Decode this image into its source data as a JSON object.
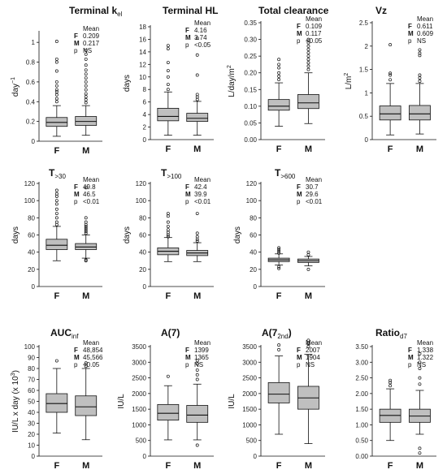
{
  "box_fill": "#bfbfbf",
  "stroke_color": "#111111",
  "chart_data": [
    {
      "type": "boxplot",
      "title": "Terminal k",
      "title_sub": "el",
      "ylabel": "day",
      "ylabel_sup": "−1",
      "ylim": [
        0,
        1.1
      ],
      "yticks": [
        0,
        0.2,
        0.4,
        0.6,
        0.8,
        1
      ],
      "ytick_labels": [
        "0",
        "0.2",
        "0.4",
        "0.6",
        "0.8",
        "1"
      ],
      "categories": [
        "F",
        "M"
      ],
      "stats": {
        "header": "Mean",
        "rows": [
          {
            "label": "F",
            "value": "0.209"
          },
          {
            "label": "M",
            "value": "0.217"
          },
          {
            "label": "p",
            "value": "NS"
          }
        ]
      },
      "boxes": [
        {
          "whisker_low": 0.05,
          "q1": 0.15,
          "median": 0.19,
          "q3": 0.24,
          "whisker_high": 0.36,
          "outliers": [
            0.4,
            0.43,
            0.47,
            0.5,
            0.52,
            0.56,
            0.6,
            0.71,
            0.8,
            0.83,
            1.01
          ]
        },
        {
          "whisker_low": 0.06,
          "q1": 0.16,
          "median": 0.2,
          "q3": 0.25,
          "whisker_high": 0.36,
          "outliers": [
            0.39,
            0.42,
            0.45,
            0.48,
            0.52,
            0.56,
            0.6,
            0.64,
            0.68,
            0.72,
            0.77,
            0.83,
            0.88,
            0.92
          ]
        }
      ]
    },
    {
      "type": "boxplot",
      "title": "Terminal HL",
      "title_sub": "",
      "ylabel": "days",
      "ylabel_sup": "",
      "ylim": [
        0,
        18
      ],
      "yticks": [
        0,
        2,
        4,
        6,
        8,
        10,
        12,
        14,
        16,
        18
      ],
      "ytick_labels": [
        "0",
        "2",
        "4",
        "6",
        "8",
        "10",
        "12",
        "14",
        "16",
        "18"
      ],
      "categories": [
        "F",
        "M"
      ],
      "stats": {
        "header": "Mean",
        "rows": [
          {
            "label": "F",
            "value": "4.16"
          },
          {
            "label": "M",
            "value": "3.74"
          },
          {
            "label": "p",
            "value": "<0.05"
          }
        ]
      },
      "boxes": [
        {
          "whisker_low": 0.7,
          "q1": 3.0,
          "median": 3.7,
          "q3": 5.0,
          "whisker_high": 7.6,
          "outliers": [
            8.0,
            8.8,
            10.0,
            11.0,
            12.3,
            14.5,
            15.0
          ]
        },
        {
          "whisker_low": 0.7,
          "q1": 2.9,
          "median": 3.4,
          "q3": 4.2,
          "whisker_high": 6.1,
          "outliers": [
            6.4,
            6.8,
            7.2,
            10.3,
            13.5,
            16.2
          ]
        }
      ]
    },
    {
      "type": "boxplot",
      "title": "Total clearance",
      "title_sub": "",
      "ylabel": "L/day/m",
      "ylabel_sup": "2",
      "ylim": [
        0,
        0.35
      ],
      "yticks": [
        0,
        0.05,
        0.1,
        0.15,
        0.2,
        0.25,
        0.3,
        0.35
      ],
      "ytick_labels": [
        "0.00",
        "0.05",
        "0.10",
        "0.15",
        "0.20",
        "0.25",
        "0.30",
        "0.35"
      ],
      "categories": [
        "F",
        "M"
      ],
      "stats": {
        "header": "Mean",
        "rows": [
          {
            "label": "F",
            "value": "0.109"
          },
          {
            "label": "M",
            "value": "0.117"
          },
          {
            "label": "p",
            "value": "<0.05"
          }
        ]
      },
      "boxes": [
        {
          "whisker_low": 0.04,
          "q1": 0.088,
          "median": 0.1,
          "q3": 0.12,
          "whisker_high": 0.17,
          "outliers": [
            0.18,
            0.19,
            0.2,
            0.215,
            0.225,
            0.24
          ]
        },
        {
          "whisker_low": 0.048,
          "q1": 0.093,
          "median": 0.11,
          "q3": 0.135,
          "whisker_high": 0.2,
          "outliers": [
            0.21,
            0.22,
            0.23,
            0.24,
            0.25,
            0.26,
            0.27,
            0.28,
            0.29,
            0.3
          ]
        }
      ]
    },
    {
      "type": "boxplot",
      "title": "Vz",
      "title_sub": "",
      "ylabel": "L/m",
      "ylabel_sup": "2",
      "ylim": [
        0,
        2.5
      ],
      "yticks": [
        0,
        0.5,
        1,
        1.5,
        2,
        2.5
      ],
      "ytick_labels": [
        "0",
        "0.5",
        "1",
        "1.5",
        "2",
        "2.5"
      ],
      "categories": [
        "F",
        "M"
      ],
      "stats": {
        "header": "Mean",
        "rows": [
          {
            "label": "F",
            "value": "0.611"
          },
          {
            "label": "M",
            "value": "0.609"
          },
          {
            "label": "p",
            "value": "NS"
          }
        ]
      },
      "boxes": [
        {
          "whisker_low": 0.1,
          "q1": 0.42,
          "median": 0.55,
          "q3": 0.72,
          "whisker_high": 1.2,
          "outliers": [
            1.28,
            1.38,
            1.42,
            2.03
          ]
        },
        {
          "whisker_low": 0.12,
          "q1": 0.42,
          "median": 0.55,
          "q3": 0.73,
          "whisker_high": 1.2,
          "outliers": [
            1.25,
            1.32,
            1.38,
            1.8,
            1.85,
            1.92
          ]
        }
      ]
    },
    {
      "type": "boxplot",
      "title": "T",
      "title_sub": ">30",
      "ylabel": "days",
      "ylabel_sup": "",
      "ylim": [
        0,
        120
      ],
      "yticks": [
        0,
        20,
        40,
        60,
        80,
        100,
        120
      ],
      "ytick_labels": [
        "0",
        "20",
        "40",
        "60",
        "80",
        "100",
        "120"
      ],
      "categories": [
        "F",
        "M"
      ],
      "stats": {
        "header": "Mean",
        "rows": [
          {
            "label": "F",
            "value": "49.8"
          },
          {
            "label": "M",
            "value": "46.5"
          },
          {
            "label": "p",
            "value": "<0.01"
          }
        ]
      },
      "boxes": [
        {
          "whisker_low": 30,
          "q1": 43,
          "median": 48,
          "q3": 55,
          "whisker_high": 70,
          "outliers": [
            72,
            75,
            80,
            85,
            90,
            96,
            100,
            105,
            108,
            112
          ]
        },
        {
          "whisker_low": 33,
          "q1": 43,
          "median": 46,
          "q3": 50,
          "whisker_high": 60,
          "outliers": [
            30,
            31,
            62,
            64,
            66,
            68,
            70,
            72,
            75,
            80,
            115
          ]
        }
      ]
    },
    {
      "type": "boxplot",
      "title": "T",
      "title_sub": ">100",
      "ylabel": "days",
      "ylabel_sup": "",
      "ylim": [
        0,
        120
      ],
      "yticks": [
        0,
        20,
        40,
        60,
        80,
        100,
        120
      ],
      "ytick_labels": [
        "0",
        "20",
        "40",
        "60",
        "80",
        "100",
        "120"
      ],
      "categories": [
        "F",
        "M"
      ],
      "stats": {
        "header": "Mean",
        "rows": [
          {
            "label": "F",
            "value": "42.4"
          },
          {
            "label": "M",
            "value": "39.9"
          },
          {
            "label": "p",
            "value": "<0.01"
          }
        ]
      },
      "boxes": [
        {
          "whisker_low": 29,
          "q1": 37,
          "median": 41,
          "q3": 45,
          "whisker_high": 57,
          "outliers": [
            58,
            60,
            63,
            66,
            70,
            75,
            82,
            85
          ]
        },
        {
          "whisker_low": 29,
          "q1": 36,
          "median": 39,
          "q3": 42,
          "whisker_high": 51,
          "outliers": [
            53,
            55,
            58,
            62,
            85
          ]
        }
      ]
    },
    {
      "type": "boxplot",
      "title": "T",
      "title_sub": ">600",
      "ylabel": "days",
      "ylabel_sup": "",
      "ylim": [
        0,
        120
      ],
      "yticks": [
        0,
        20,
        40,
        60,
        80,
        100,
        120
      ],
      "ytick_labels": [
        "0",
        "20",
        "40",
        "60",
        "80",
        "100",
        "120"
      ],
      "categories": [
        "F",
        "M"
      ],
      "stats": {
        "header": "Mean",
        "rows": [
          {
            "label": "F",
            "value": "30.7"
          },
          {
            "label": "M",
            "value": "29.6"
          },
          {
            "label": "p",
            "value": "<0.01"
          }
        ]
      },
      "boxes": [
        {
          "whisker_low": 25,
          "q1": 29,
          "median": 31,
          "q3": 33,
          "whisker_high": 38,
          "outliers": [
            21,
            23,
            39,
            41,
            43,
            45
          ]
        },
        {
          "whisker_low": 24,
          "q1": 28,
          "median": 30,
          "q3": 32,
          "whisker_high": 35,
          "outliers": [
            20,
            37,
            40
          ]
        }
      ]
    },
    {
      "type": "boxplot",
      "title": "AUC",
      "title_sub": "inf",
      "ylabel": "IU/L x day (x 10",
      "ylabel_sup": "3",
      "ylabel_suffix": ")",
      "ylim": [
        0,
        100
      ],
      "yticks": [
        0,
        10,
        20,
        30,
        40,
        50,
        60,
        70,
        80,
        90,
        100
      ],
      "ytick_labels": [
        "0",
        "10",
        "20",
        "30",
        "40",
        "50",
        "60",
        "70",
        "80",
        "90",
        "100"
      ],
      "categories": [
        "F",
        "M"
      ],
      "stats": {
        "header": "Mean",
        "rows": [
          {
            "label": "F",
            "value": "48,854"
          },
          {
            "label": "M",
            "value": "45,566"
          },
          {
            "label": "p",
            "value": "<0.05"
          }
        ]
      },
      "boxes": [
        {
          "whisker_low": 21,
          "q1": 40,
          "median": 48,
          "q3": 57,
          "whisker_high": 80,
          "outliers": [
            87
          ]
        },
        {
          "whisker_low": 15,
          "q1": 37,
          "median": 45,
          "q3": 55,
          "whisker_high": 80,
          "outliers": [
            82,
            85
          ]
        }
      ]
    },
    {
      "type": "boxplot",
      "title": "A(7)",
      "title_sub": "",
      "ylabel": "IU/L",
      "ylabel_sup": "",
      "ylim": [
        0,
        3500
      ],
      "yticks": [
        0,
        500,
        1000,
        1500,
        2000,
        2500,
        3000,
        3500
      ],
      "ytick_labels": [
        "0",
        "500",
        "1000",
        "1500",
        "2000",
        "2500",
        "3000",
        "3500"
      ],
      "categories": [
        "F",
        "M"
      ],
      "stats": {
        "header": "Mean",
        "rows": [
          {
            "label": "F",
            "value": "1399"
          },
          {
            "label": "M",
            "value": "1365"
          },
          {
            "label": "p",
            "value": "NS"
          }
        ]
      },
      "boxes": [
        {
          "whisker_low": 520,
          "q1": 1150,
          "median": 1370,
          "q3": 1650,
          "whisker_high": 2250,
          "outliers": [
            2550
          ]
        },
        {
          "whisker_low": 520,
          "q1": 1080,
          "median": 1310,
          "q3": 1620,
          "whisker_high": 2300,
          "outliers": [
            350,
            2450,
            2600,
            2750,
            2950,
            3050
          ]
        }
      ]
    },
    {
      "type": "boxplot",
      "title": "A(7",
      "title_sub": "2nd",
      "title_suffix": ")",
      "ylabel": "IU/L",
      "ylabel_sup": "",
      "ylim": [
        0,
        3500
      ],
      "yticks": [
        0,
        500,
        1000,
        1500,
        2000,
        2500,
        3000,
        3500
      ],
      "ytick_labels": [
        "0",
        "500",
        "1000",
        "1500",
        "2000",
        "2500",
        "3000",
        "3500"
      ],
      "categories": [
        "F",
        "M"
      ],
      "stats": {
        "header": "Mean",
        "rows": [
          {
            "label": "F",
            "value": "2007"
          },
          {
            "label": "M",
            "value": "1904"
          },
          {
            "label": "p",
            "value": "NS"
          }
        ]
      },
      "boxes": [
        {
          "whisker_low": 700,
          "q1": 1700,
          "median": 1980,
          "q3": 2350,
          "whisker_high": 3200,
          "outliers": [
            3400,
            3550
          ]
        },
        {
          "whisker_low": 400,
          "q1": 1500,
          "median": 1860,
          "q3": 2230,
          "whisker_high": 3250,
          "outliers": [
            3500,
            3600,
            3700
          ]
        }
      ]
    },
    {
      "type": "boxplot",
      "title": "Ratio",
      "title_sub": "d7",
      "ylabel": "",
      "ylabel_sup": "",
      "ylim": [
        0,
        3.5
      ],
      "yticks": [
        0,
        0.5,
        1,
        1.5,
        2,
        2.5,
        3,
        3.5
      ],
      "ytick_labels": [
        "0.00",
        "0.50",
        "1.00",
        "1.50",
        "2.00",
        "2.50",
        "3.00",
        "3.50"
      ],
      "categories": [
        "F",
        "M"
      ],
      "stats": {
        "header": "Mean",
        "rows": [
          {
            "label": "F",
            "value": "1.338"
          },
          {
            "label": "M",
            "value": "1.322"
          },
          {
            "label": "p",
            "value": "NS"
          }
        ]
      },
      "boxes": [
        {
          "whisker_low": 0.5,
          "q1": 1.08,
          "median": 1.3,
          "q3": 1.5,
          "whisker_high": 2.15,
          "outliers": [
            2.25,
            2.35,
            2.42
          ]
        },
        {
          "whisker_low": 0.7,
          "q1": 1.08,
          "median": 1.28,
          "q3": 1.5,
          "whisker_high": 2.1,
          "outliers": [
            0.1,
            0.25,
            2.3,
            2.5,
            2.8,
            3.0,
            3.27
          ]
        }
      ]
    }
  ]
}
